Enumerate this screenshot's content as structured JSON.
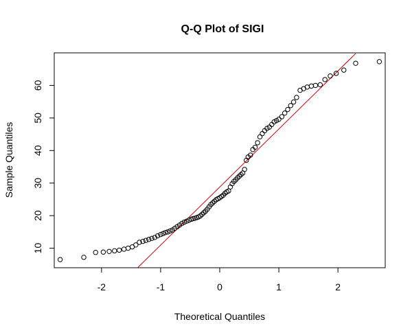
{
  "chart_data": {
    "type": "scatter",
    "title": "Q-Q Plot of SIGI",
    "xlabel": "Theoretical Quantiles",
    "ylabel": "Sample Quantiles",
    "xlim": [
      -2.8,
      2.8
    ],
    "ylim": [
      4,
      70
    ],
    "xticks": [
      "-2",
      "-1",
      "0",
      "1",
      "2"
    ],
    "xtick_values": [
      -2,
      -1,
      0,
      1,
      2
    ],
    "yticks": [
      "10",
      "20",
      "30",
      "40",
      "50",
      "60"
    ],
    "ytick_values": [
      10,
      20,
      30,
      40,
      50,
      60
    ],
    "grid": false,
    "legend": "none",
    "colors": {
      "points": "#000000",
      "reference_line": "#cc0000"
    },
    "reference_line": {
      "x": [
        -1.39,
        2.3
      ],
      "y": [
        4,
        69.8
      ]
    },
    "points": {
      "x": [
        -2.7,
        -2.3,
        -2.1,
        -1.97,
        -1.87,
        -1.78,
        -1.7,
        -1.62,
        -1.55,
        -1.48,
        -1.42,
        -1.36,
        -1.3,
        -1.25,
        -1.2,
        -1.15,
        -1.1,
        -1.05,
        -1.0,
        -0.96,
        -0.92,
        -0.88,
        -0.84,
        -0.8,
        -0.76,
        -0.72,
        -0.68,
        -0.64,
        -0.6,
        -0.56,
        -0.52,
        -0.48,
        -0.45,
        -0.42,
        -0.39,
        -0.36,
        -0.33,
        -0.3,
        -0.27,
        -0.24,
        -0.21,
        -0.18,
        -0.15,
        -0.12,
        -0.09,
        -0.06,
        -0.03,
        0.0,
        0.03,
        0.06,
        0.09,
        0.12,
        0.15,
        0.18,
        0.21,
        0.24,
        0.27,
        0.3,
        0.33,
        0.36,
        0.39,
        0.42,
        0.45,
        0.48,
        0.52,
        0.56,
        0.6,
        0.64,
        0.68,
        0.72,
        0.76,
        0.8,
        0.84,
        0.88,
        0.92,
        0.96,
        1.0,
        1.05,
        1.1,
        1.15,
        1.2,
        1.25,
        1.3,
        1.36,
        1.42,
        1.48,
        1.55,
        1.62,
        1.7,
        1.78,
        1.87,
        1.97,
        2.1,
        2.3,
        2.7
      ],
      "y": [
        6.5,
        7.2,
        8.7,
        8.8,
        9.0,
        9.2,
        9.4,
        9.7,
        10.0,
        10.4,
        11.0,
        11.8,
        12.1,
        12.4,
        12.7,
        13.0,
        13.3,
        13.8,
        14.2,
        14.5,
        14.8,
        15.0,
        15.3,
        15.6,
        16.1,
        16.6,
        17.1,
        17.6,
        18.0,
        18.3,
        18.6,
        18.9,
        19.1,
        19.2,
        19.4,
        19.6,
        19.9,
        20.4,
        20.9,
        21.4,
        22.0,
        22.7,
        23.4,
        23.9,
        24.4,
        24.9,
        25.2,
        25.5,
        25.9,
        26.3,
        26.9,
        27.3,
        27.6,
        28.8,
        29.8,
        30.5,
        31.0,
        31.6,
        32.1,
        32.6,
        33.1,
        34.2,
        37.0,
        38.0,
        38.6,
        40.3,
        41.0,
        42.4,
        44.2,
        45.2,
        46.1,
        46.8,
        47.2,
        48.0,
        48.8,
        49.2,
        49.6,
        50.4,
        51.5,
        52.6,
        53.8,
        54.9,
        56.3,
        58.5,
        59.0,
        59.5,
        59.8,
        60.0,
        60.2,
        61.8,
        62.9,
        63.7,
        64.7,
        66.8,
        67.3
      ]
    }
  }
}
